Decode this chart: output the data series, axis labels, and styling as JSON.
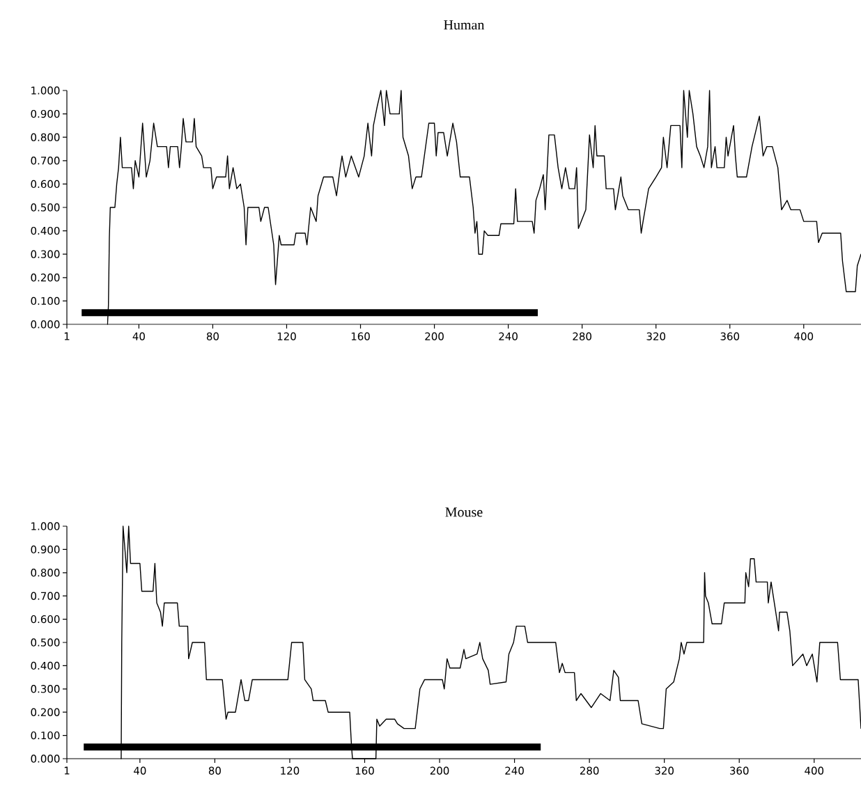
{
  "chart_data": [
    {
      "type": "line",
      "title": "Human",
      "xlim": [
        1,
        431
      ],
      "ylim": [
        0,
        1
      ],
      "xticks": [
        1,
        40,
        80,
        120,
        160,
        200,
        240,
        280,
        320,
        360,
        400
      ],
      "yticks": [
        {
          "value": 0,
          "label": "0.000"
        },
        {
          "value": 0.1,
          "label": "0.100"
        },
        {
          "value": 0.2,
          "label": "0.200"
        },
        {
          "value": 0.3,
          "label": "0.300"
        },
        {
          "value": 0.4,
          "label": "0.400"
        },
        {
          "value": 0.5,
          "label": "0.500"
        },
        {
          "value": 0.6,
          "label": "0.600"
        },
        {
          "value": 0.7,
          "label": "0.700"
        },
        {
          "value": 0.8,
          "label": "0.800"
        },
        {
          "value": 0.9,
          "label": "0.900"
        },
        {
          "value": 1,
          "label": "1.000"
        }
      ],
      "marker": "none",
      "line_style": "solid",
      "series": [
        {
          "color": "#000000",
          "x": [
            23,
            23.5,
            24,
            24.5,
            27,
            28,
            29,
            30,
            31,
            36,
            37,
            38,
            40,
            42,
            44,
            46,
            48,
            50,
            55,
            56,
            57,
            61,
            62,
            63,
            64,
            65.5,
            69,
            70,
            71,
            74,
            75,
            79,
            80,
            82,
            87,
            88,
            89,
            91,
            93,
            95,
            97,
            98,
            99,
            105,
            106,
            108,
            110,
            113,
            114,
            116,
            117,
            124,
            125,
            130,
            131,
            133,
            136,
            137,
            140,
            145,
            147,
            149,
            150,
            152,
            155,
            159,
            162,
            164,
            166,
            167,
            169,
            171,
            173,
            174,
            176,
            181,
            182,
            183,
            186,
            188,
            190,
            193,
            197,
            200,
            201,
            202,
            205,
            207,
            210,
            212,
            214,
            219,
            221,
            222,
            223,
            224,
            226,
            227,
            229,
            235,
            236,
            243,
            244,
            245,
            253,
            254,
            255,
            257,
            259,
            260,
            262,
            265,
            267,
            269,
            271,
            273,
            276,
            277,
            278,
            282,
            284,
            286,
            287,
            288,
            292,
            293,
            297,
            298,
            301,
            302,
            305,
            311,
            312,
            313,
            316,
            320,
            323,
            324,
            326,
            328,
            333,
            334,
            335,
            337,
            338,
            340,
            342,
            344,
            346,
            348,
            349,
            350,
            352,
            353,
            357,
            358,
            359,
            362,
            363,
            364,
            369,
            372,
            376,
            378,
            380,
            383,
            386,
            388,
            391,
            393,
            398,
            400,
            407,
            408,
            410,
            420,
            421,
            423,
            428,
            429,
            431
          ],
          "values": [
            0,
            0.08,
            0.37,
            0.5,
            0.5,
            0.6,
            0.67,
            0.8,
            0.67,
            0.67,
            0.58,
            0.7,
            0.63,
            0.86,
            0.63,
            0.7,
            0.86,
            0.76,
            0.76,
            0.67,
            0.76,
            0.76,
            0.67,
            0.76,
            0.88,
            0.78,
            0.78,
            0.88,
            0.76,
            0.72,
            0.67,
            0.67,
            0.58,
            0.63,
            0.63,
            0.72,
            0.58,
            0.67,
            0.58,
            0.6,
            0.5,
            0.34,
            0.5,
            0.5,
            0.44,
            0.5,
            0.5,
            0.34,
            0.17,
            0.38,
            0.34,
            0.34,
            0.39,
            0.39,
            0.34,
            0.5,
            0.44,
            0.55,
            0.63,
            0.63,
            0.55,
            0.67,
            0.72,
            0.63,
            0.72,
            0.63,
            0.72,
            0.86,
            0.72,
            0.85,
            0.93,
            1.0,
            0.85,
            1.0,
            0.9,
            0.9,
            1.0,
            0.8,
            0.72,
            0.58,
            0.63,
            0.63,
            0.86,
            0.86,
            0.72,
            0.82,
            0.82,
            0.72,
            0.86,
            0.78,
            0.63,
            0.63,
            0.5,
            0.39,
            0.44,
            0.3,
            0.3,
            0.4,
            0.38,
            0.38,
            0.43,
            0.43,
            0.58,
            0.44,
            0.44,
            0.39,
            0.53,
            0.58,
            0.64,
            0.49,
            0.81,
            0.81,
            0.67,
            0.58,
            0.67,
            0.58,
            0.58,
            0.67,
            0.41,
            0.49,
            0.81,
            0.67,
            0.85,
            0.72,
            0.72,
            0.58,
            0.58,
            0.49,
            0.63,
            0.55,
            0.49,
            0.49,
            0.39,
            0.44,
            0.58,
            0.63,
            0.67,
            0.8,
            0.67,
            0.85,
            0.85,
            0.67,
            1.0,
            0.8,
            1.0,
            0.9,
            0.76,
            0.72,
            0.67,
            0.76,
            1.0,
            0.67,
            0.76,
            0.67,
            0.67,
            0.8,
            0.72,
            0.85,
            0.72,
            0.63,
            0.63,
            0.76,
            0.89,
            0.72,
            0.76,
            0.76,
            0.67,
            0.49,
            0.53,
            0.49,
            0.49,
            0.44,
            0.44,
            0.35,
            0.39,
            0.39,
            0.27,
            0.14,
            0.14,
            0.25,
            0.3
          ]
        },
        {
          "color": "#000000",
          "x": [
            9,
            256
          ],
          "values": [
            0.05,
            0.05
          ]
        }
      ]
    },
    {
      "type": "line",
      "title": "Mouse",
      "xlim": [
        1,
        425
      ],
      "ylim": [
        0,
        1
      ],
      "xticks": [
        1,
        40,
        80,
        120,
        160,
        200,
        240,
        280,
        320,
        360,
        400
      ],
      "yticks": [
        {
          "value": 0,
          "label": "0.000"
        },
        {
          "value": 0.1,
          "label": "0.100"
        },
        {
          "value": 0.2,
          "label": "0.200"
        },
        {
          "value": 0.3,
          "label": "0.300"
        },
        {
          "value": 0.4,
          "label": "0.400"
        },
        {
          "value": 0.5,
          "label": "0.500"
        },
        {
          "value": 0.6,
          "label": "0.600"
        },
        {
          "value": 0.7,
          "label": "0.700"
        },
        {
          "value": 0.8,
          "label": "0.800"
        },
        {
          "value": 0.9,
          "label": "0.900"
        },
        {
          "value": 1,
          "label": "1.000"
        }
      ],
      "marker": "none",
      "line_style": "solid",
      "series": [
        {
          "color": "#000000",
          "x": [
            30,
            30.3,
            31,
            32,
            33,
            34,
            35,
            40,
            41,
            47,
            48,
            49,
            51,
            52,
            53,
            60,
            61,
            65.5,
            66,
            68,
            74.5,
            75.5,
            84,
            86,
            87,
            91,
            94,
            96,
            98,
            100,
            119,
            121,
            127,
            128,
            131.5,
            132.5,
            139,
            140.5,
            152,
            153,
            153.5,
            166,
            166.5,
            168,
            171.5,
            176,
            177.5,
            181,
            187,
            189.5,
            192,
            201.5,
            202.5,
            204,
            205.5,
            211,
            213,
            214,
            220,
            221.5,
            223,
            226,
            227,
            235.5,
            237,
            239.5,
            241,
            245.5,
            247,
            262,
            264,
            265.5,
            267,
            272,
            273,
            275.5,
            281,
            286,
            291,
            293,
            295.5,
            296.5,
            306,
            308,
            317.5,
            319.5,
            321,
            325,
            328,
            329,
            330.5,
            332,
            341,
            341.5,
            342,
            343.5,
            345.5,
            350.5,
            352,
            363,
            363.5,
            365,
            366,
            368,
            369,
            375,
            375.5,
            377,
            379.5,
            381,
            381.5,
            385.5,
            387,
            388.5,
            394,
            396,
            399,
            401.5,
            403,
            412.5,
            414,
            423.5,
            425
          ],
          "values": [
            0,
            0.5,
            1.0,
            0.9,
            0.8,
            1.0,
            0.84,
            0.84,
            0.72,
            0.72,
            0.84,
            0.67,
            0.63,
            0.57,
            0.67,
            0.67,
            0.57,
            0.57,
            0.43,
            0.5,
            0.5,
            0.34,
            0.34,
            0.17,
            0.2,
            0.2,
            0.34,
            0.25,
            0.25,
            0.34,
            0.34,
            0.5,
            0.5,
            0.34,
            0.3,
            0.25,
            0.25,
            0.2,
            0.2,
            0.05,
            0,
            0,
            0.17,
            0.14,
            0.17,
            0.17,
            0.15,
            0.13,
            0.13,
            0.3,
            0.34,
            0.34,
            0.3,
            0.43,
            0.39,
            0.39,
            0.47,
            0.43,
            0.45,
            0.5,
            0.43,
            0.38,
            0.32,
            0.33,
            0.45,
            0.5,
            0.57,
            0.57,
            0.5,
            0.5,
            0.37,
            0.41,
            0.37,
            0.37,
            0.25,
            0.28,
            0.22,
            0.28,
            0.25,
            0.38,
            0.35,
            0.25,
            0.25,
            0.15,
            0.13,
            0.13,
            0.3,
            0.33,
            0.43,
            0.5,
            0.45,
            0.5,
            0.5,
            0.8,
            0.7,
            0.67,
            0.58,
            0.58,
            0.67,
            0.67,
            0.8,
            0.74,
            0.86,
            0.86,
            0.76,
            0.76,
            0.67,
            0.76,
            0.63,
            0.55,
            0.63,
            0.63,
            0.55,
            0.4,
            0.45,
            0.4,
            0.45,
            0.33,
            0.5,
            0.5,
            0.34,
            0.34,
            0.13
          ]
        },
        {
          "color": "#000000",
          "x": [
            10,
            254
          ],
          "values": [
            0.05,
            0.05
          ]
        }
      ]
    }
  ]
}
